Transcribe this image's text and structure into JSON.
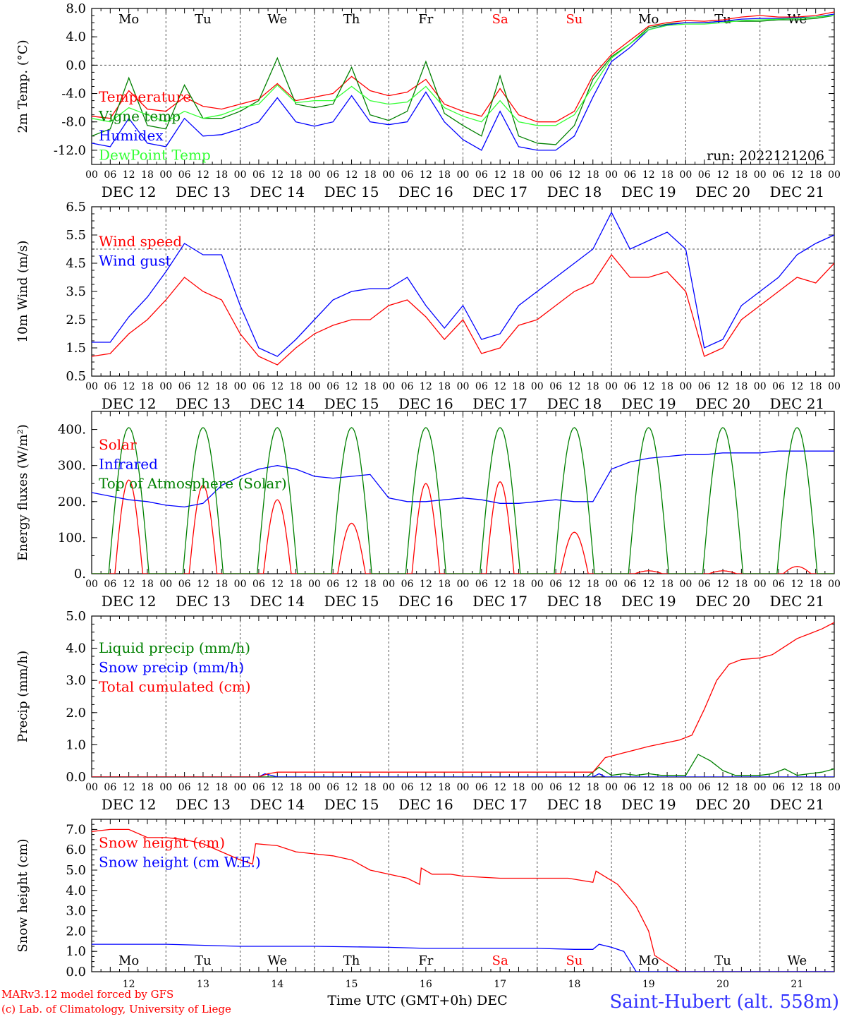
{
  "chart_data": [
    {
      "id": "temp",
      "type": "line",
      "ylabel": "2m Temp. (°C)",
      "ylim": [
        -14,
        8
      ],
      "yticks": [
        8,
        4,
        -4,
        -8,
        -12
      ],
      "ytick_labels": [
        "8.0",
        "4.0",
        "0.0",
        "-4.0",
        "-8.0",
        "-12.0"
      ],
      "ytick_values": [
        8,
        4,
        0,
        -4,
        -8,
        -12
      ],
      "dashed_h": [
        0
      ],
      "day_letters": [
        "Mo",
        "Tu",
        "We",
        "Th",
        "Fr",
        "Sa",
        "Su",
        "Mo",
        "Tu",
        "We"
      ],
      "weekend_idx": [
        5,
        6
      ],
      "annotation": "run: 2022121206",
      "series": [
        {
          "name": "Temperature",
          "color": "#ff0000",
          "x": [
            0,
            6,
            12,
            18,
            24,
            30,
            36,
            42,
            48,
            54,
            60,
            66,
            72,
            78,
            84,
            90,
            96,
            102,
            108,
            114,
            120,
            126,
            132,
            138,
            144,
            150,
            156,
            162,
            168,
            174,
            180,
            186,
            192,
            198,
            204,
            210,
            216,
            222,
            228,
            234,
            240
          ],
          "y": [
            -7.2,
            -7.5,
            -3.6,
            -6.2,
            -6.5,
            -4.5,
            -5.8,
            -6.2,
            -5.5,
            -4.8,
            -2.6,
            -5,
            -4.5,
            -4,
            -1.6,
            -3.6,
            -4.3,
            -3.8,
            -2,
            -5.5,
            -6.5,
            -7.2,
            -3.3,
            -7,
            -8,
            -8,
            -6.5,
            -1.5,
            1.5,
            3.5,
            5.5,
            6,
            6.3,
            6.2,
            6.4,
            6.8,
            7,
            6.8,
            6.8,
            7,
            7.5
          ]
        },
        {
          "name": "Vigne temp",
          "color": "#008000",
          "x": [
            0,
            6,
            12,
            18,
            24,
            30,
            36,
            42,
            48,
            54,
            60,
            66,
            72,
            78,
            84,
            90,
            96,
            102,
            108,
            114,
            120,
            126,
            132,
            138,
            144,
            150,
            156,
            162,
            168,
            174,
            180,
            186,
            192,
            198,
            204,
            210,
            216,
            222,
            228,
            234,
            240
          ],
          "y": [
            -10,
            -9,
            -1.8,
            -8.5,
            -9,
            -2.8,
            -7.5,
            -7.5,
            -6.5,
            -5,
            1,
            -5.5,
            -6,
            -5.5,
            -0.3,
            -7,
            -7.8,
            -6.5,
            0.5,
            -6.8,
            -8.5,
            -10,
            -1.5,
            -10,
            -11,
            -11.2,
            -8.5,
            -2,
            1.2,
            3,
            5.3,
            5.8,
            6,
            6,
            6.2,
            6.2,
            6.2,
            6.4,
            6.4,
            6.6,
            7
          ]
        },
        {
          "name": "Humidex",
          "color": "#0000ff",
          "x": [
            0,
            6,
            12,
            18,
            24,
            30,
            36,
            42,
            48,
            54,
            60,
            66,
            72,
            78,
            84,
            90,
            96,
            102,
            108,
            114,
            120,
            126,
            132,
            138,
            144,
            150,
            156,
            162,
            168,
            174,
            180,
            186,
            192,
            198,
            204,
            210,
            216,
            222,
            228,
            234,
            240
          ],
          "y": [
            -11,
            -11.5,
            -7.5,
            -11,
            -11.5,
            -7.5,
            -10,
            -9.8,
            -9,
            -8,
            -4.6,
            -8,
            -8.6,
            -8,
            -4.3,
            -8,
            -8.4,
            -8,
            -3.8,
            -8,
            -10.5,
            -12,
            -6.5,
            -11.5,
            -12,
            -12,
            -10,
            -4.5,
            0.5,
            2.5,
            5,
            5.7,
            6,
            6,
            6.2,
            6.5,
            6.6,
            6.6,
            6.7,
            6.8,
            7.2
          ]
        },
        {
          "name": "DewPoint Temp",
          "color": "#33ff33",
          "x": [
            0,
            6,
            12,
            18,
            24,
            30,
            36,
            42,
            48,
            54,
            60,
            66,
            72,
            78,
            84,
            90,
            96,
            102,
            108,
            114,
            120,
            126,
            132,
            138,
            144,
            150,
            156,
            162,
            168,
            174,
            180,
            186,
            192,
            198,
            204,
            210,
            216,
            222,
            228,
            234,
            240
          ],
          "y": [
            -7.5,
            -8,
            -6,
            -7,
            -8,
            -6.5,
            -7.5,
            -7,
            -6,
            -5.5,
            -2.8,
            -5.3,
            -5,
            -5,
            -3,
            -5,
            -5.5,
            -5.2,
            -3,
            -6,
            -7.2,
            -8,
            -5,
            -8,
            -8.5,
            -8.5,
            -7,
            -3,
            1,
            3,
            5,
            5.6,
            5.8,
            5.8,
            6,
            6.3,
            6.4,
            6.5,
            6.6,
            6.8,
            7
          ]
        }
      ]
    },
    {
      "id": "wind",
      "type": "line",
      "ylabel": "10m Wind (m/s)",
      "ylim": [
        0.5,
        6.5
      ],
      "ytick_labels": [
        "6.5",
        "5.5",
        "4.5",
        "3.5",
        "2.5",
        "1.5",
        "0.5"
      ],
      "ytick_values": [
        6.5,
        5.5,
        4.5,
        3.5,
        2.5,
        1.5,
        0.5
      ],
      "dashed_h": [
        5
      ],
      "series": [
        {
          "name": "Wind speed",
          "color": "#ff0000",
          "x": [
            0,
            6,
            12,
            18,
            24,
            30,
            36,
            42,
            48,
            54,
            60,
            66,
            72,
            78,
            84,
            90,
            96,
            102,
            108,
            114,
            120,
            126,
            132,
            138,
            144,
            150,
            156,
            162,
            168,
            174,
            180,
            186,
            192,
            198,
            204,
            210,
            216,
            222,
            228,
            234,
            240
          ],
          "y": [
            1.2,
            1.3,
            2,
            2.5,
            3.2,
            4,
            3.5,
            3.2,
            2,
            1.2,
            0.9,
            1.5,
            2,
            2.3,
            2.5,
            2.5,
            3,
            3.2,
            2.6,
            1.8,
            2.5,
            1.3,
            1.5,
            2.3,
            2.5,
            3,
            3.5,
            3.8,
            4.8,
            4,
            4,
            4.2,
            3.5,
            1.2,
            1.5,
            2.5,
            3,
            3.5,
            4,
            3.8,
            4.5
          ]
        },
        {
          "name": "Wind gust",
          "color": "#0000ff",
          "x": [
            0,
            6,
            12,
            18,
            24,
            30,
            36,
            42,
            48,
            54,
            60,
            66,
            72,
            78,
            84,
            90,
            96,
            102,
            108,
            114,
            120,
            126,
            132,
            138,
            144,
            150,
            156,
            162,
            168,
            174,
            180,
            186,
            192,
            198,
            204,
            210,
            216,
            222,
            228,
            234,
            240
          ],
          "y": [
            1.7,
            1.7,
            2.6,
            3.3,
            4.2,
            5.2,
            4.8,
            4.8,
            3,
            1.5,
            1.2,
            1.8,
            2.5,
            3.2,
            3.5,
            3.6,
            3.6,
            4,
            3,
            2.2,
            3,
            1.8,
            2,
            3,
            3.5,
            4,
            4.5,
            5,
            6.3,
            5,
            5.3,
            5.6,
            5,
            1.5,
            1.8,
            3,
            3.5,
            4,
            4.8,
            5.2,
            5.5
          ]
        }
      ]
    },
    {
      "id": "energy",
      "type": "line",
      "ylabel": "Energy fluxes (W/m²)",
      "ylim": [
        0,
        450
      ],
      "ytick_labels": [
        "400.",
        "300.",
        "200.",
        "100.",
        "0."
      ],
      "ytick_values": [
        400,
        300,
        200,
        100,
        0
      ],
      "solar_peaks": [
        260,
        245,
        205,
        140,
        250,
        255,
        115,
        8,
        8,
        20
      ],
      "toa_peak": 405,
      "series": [
        {
          "name": "Solar",
          "color": "#ff0000"
        },
        {
          "name": "Infrared",
          "color": "#0000ff",
          "x": [
            0,
            6,
            12,
            18,
            24,
            30,
            36,
            42,
            48,
            54,
            60,
            66,
            72,
            78,
            84,
            90,
            96,
            102,
            108,
            114,
            120,
            126,
            132,
            138,
            144,
            150,
            156,
            162,
            168,
            174,
            180,
            186,
            192,
            198,
            204,
            210,
            216,
            222,
            228,
            234,
            240
          ],
          "y": [
            225,
            215,
            205,
            200,
            190,
            185,
            195,
            245,
            270,
            290,
            300,
            290,
            270,
            265,
            270,
            275,
            210,
            200,
            200,
            205,
            210,
            205,
            195,
            195,
            200,
            205,
            200,
            200,
            290,
            310,
            320,
            325,
            330,
            330,
            335,
            335,
            335,
            340,
            340,
            340,
            340
          ]
        },
        {
          "name": "Top of Atmosphere (Solar)",
          "color": "#008000"
        }
      ]
    },
    {
      "id": "precip",
      "type": "line",
      "ylabel": "Precip (mm/h)",
      "ylim": [
        0,
        5
      ],
      "ytick_labels": [
        "5.0",
        "4.0",
        "3.0",
        "2.0",
        "1.0",
        "0.0"
      ],
      "ytick_values": [
        5,
        4,
        3,
        2,
        1,
        0
      ],
      "series": [
        {
          "name": "Liquid precip (mm/h)",
          "color": "#008000",
          "x": [
            0,
            160,
            164,
            168,
            172,
            176,
            180,
            184,
            188,
            192,
            196,
            200,
            204,
            208,
            212,
            216,
            220,
            224,
            228,
            232,
            236,
            240
          ],
          "y": [
            0,
            0,
            0.3,
            0.05,
            0.1,
            0.05,
            0.1,
            0.05,
            0.05,
            0.05,
            0.7,
            0.5,
            0.2,
            0.05,
            0.05,
            0.05,
            0.1,
            0.25,
            0.05,
            0.1,
            0.15,
            0.25
          ]
        },
        {
          "name": "Snow precip (mm/h)",
          "color": "#0000ff",
          "x": [
            0,
            54,
            56,
            58,
            60,
            162,
            164,
            166,
            240
          ],
          "y": [
            0,
            0,
            0.1,
            0.05,
            0,
            0,
            0.1,
            0,
            0
          ]
        },
        {
          "name": "Total cumulated (cm)",
          "color": "#ff0000",
          "x": [
            0,
            54,
            57,
            60,
            162,
            166,
            168,
            172,
            180,
            190,
            194,
            198,
            202,
            206,
            210,
            216,
            220,
            224,
            228,
            232,
            236,
            240
          ],
          "y": [
            0,
            0,
            0.1,
            0.15,
            0.15,
            0.6,
            0.65,
            0.75,
            0.95,
            1.15,
            1.3,
            2.1,
            3,
            3.5,
            3.65,
            3.7,
            3.8,
            4.05,
            4.3,
            4.45,
            4.6,
            4.8
          ]
        }
      ]
    },
    {
      "id": "snow",
      "type": "line",
      "ylabel": "Snow height (cm)",
      "ylim": [
        0,
        7.5
      ],
      "ytick_labels": [
        "7.0",
        "6.0",
        "5.0",
        "4.0",
        "3.0",
        "2.0",
        "1.0",
        "0.0"
      ],
      "ytick_values": [
        7,
        6,
        5,
        4,
        3,
        2,
        1,
        0
      ],
      "day_letters": [
        "Mo",
        "Tu",
        "We",
        "Th",
        "Fr",
        "Sa",
        "Su",
        "Mo",
        "Tu",
        "We"
      ],
      "weekend_idx": [
        5,
        6
      ],
      "series": [
        {
          "name": "Snow height (cm)",
          "color": "#ff0000",
          "x": [
            0,
            6,
            12,
            18,
            24,
            30,
            36,
            42,
            48,
            52,
            53,
            60,
            66,
            72,
            78,
            84,
            90,
            96,
            102,
            106,
            106.5,
            110,
            116,
            120,
            132,
            144,
            154,
            162,
            163,
            170,
            176,
            180,
            182,
            190,
            240
          ],
          "y": [
            6.9,
            7,
            7,
            6.6,
            6.6,
            6.5,
            6.3,
            5.9,
            5.5,
            5.3,
            6.3,
            6.2,
            5.9,
            5.8,
            5.7,
            5.5,
            5,
            4.8,
            4.6,
            4.3,
            5.1,
            4.8,
            4.8,
            4.7,
            4.6,
            4.6,
            4.6,
            4.4,
            4.95,
            4.3,
            3.2,
            2,
            0.8,
            0,
            0
          ]
        },
        {
          "name": "Snow height (cm W.E.)",
          "color": "#0000ff",
          "x": [
            0,
            24,
            48,
            72,
            96,
            108,
            120,
            144,
            156,
            162,
            164,
            168,
            172,
            176,
            240
          ],
          "y": [
            1.35,
            1.35,
            1.25,
            1.25,
            1.2,
            1.15,
            1.15,
            1.15,
            1.1,
            1.1,
            1.35,
            1.2,
            1.0,
            0,
            0
          ]
        }
      ]
    }
  ],
  "x_axis": {
    "hours": 240,
    "hour_tick_labels": [
      "00",
      "06",
      "12",
      "18"
    ],
    "day_labels": [
      "DEC 12",
      "DEC 13",
      "DEC 14",
      "DEC 15",
      "DEC 16",
      "DEC 17",
      "DEC 18",
      "DEC 19",
      "DEC 20",
      "DEC 21"
    ],
    "bottom_day_numbers": [
      "12",
      "13",
      "14",
      "15",
      "16",
      "17",
      "18",
      "19",
      "20",
      "21"
    ],
    "bottom_title": "Time UTC (GMT+0h) DEC"
  },
  "footer": {
    "credit_line1": "MARv3.12 model forced by GFS",
    "credit_line2": "(c) Lab. of Climatology, University of Liege",
    "station": "Saint-Hubert (alt. 558m)"
  },
  "colors": {
    "red": "#ff0000",
    "green": "#008000",
    "blue": "#0000ff",
    "lightgreen": "#33ff33",
    "grid": "#555555"
  }
}
